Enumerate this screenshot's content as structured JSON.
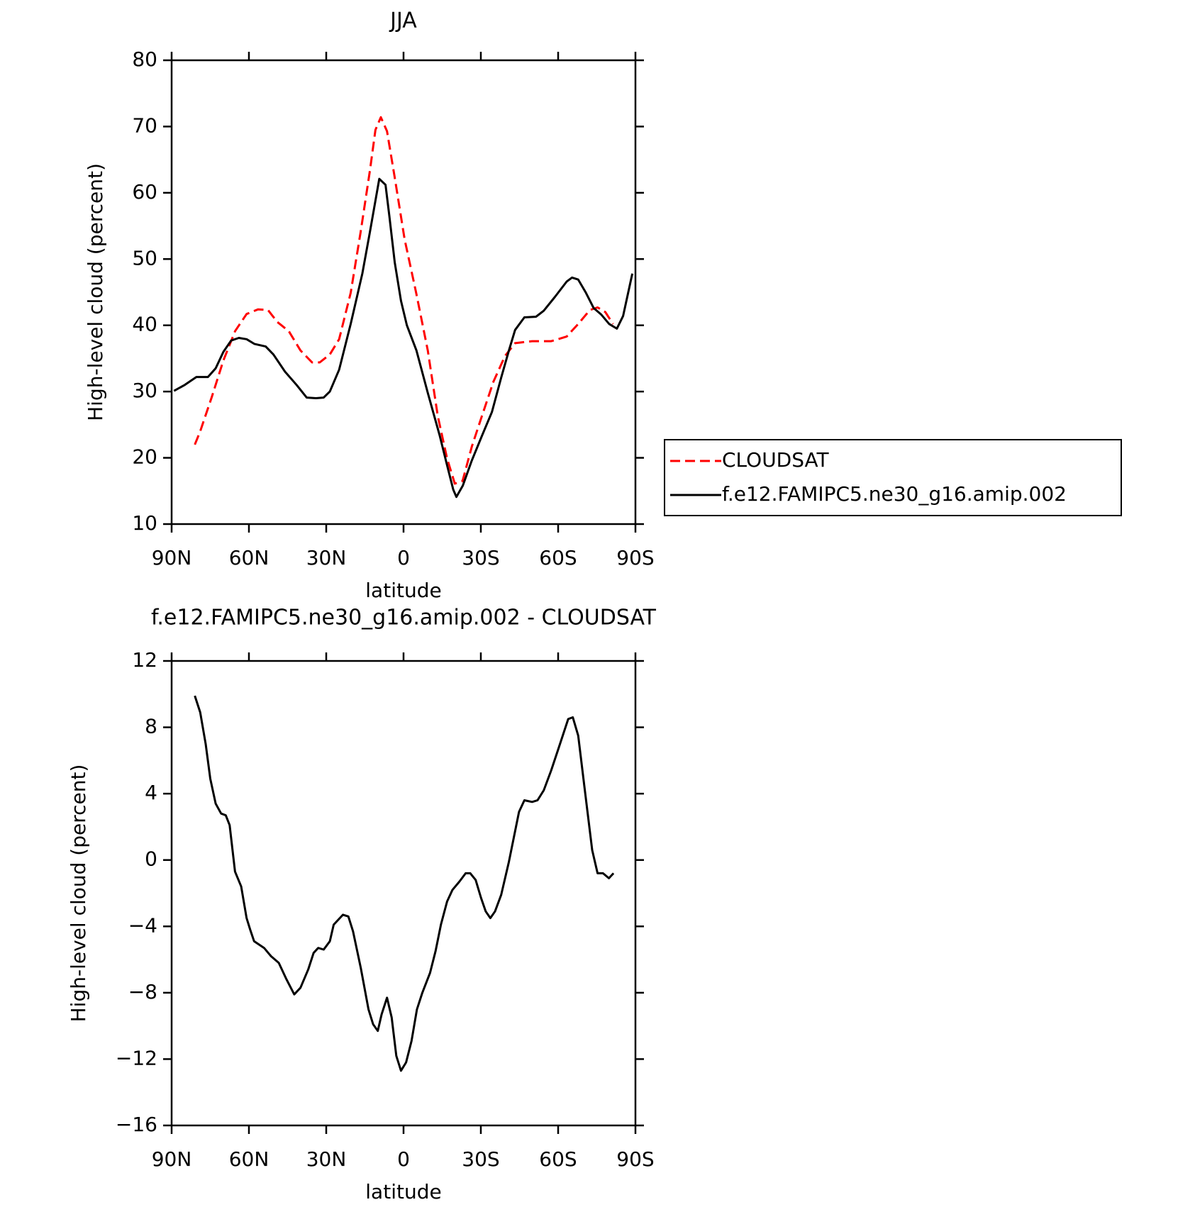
{
  "chart_data": [
    {
      "type": "line",
      "title": "JJA",
      "xlabel": "latitude",
      "ylabel": "High-level cloud (percent)",
      "xlim": [
        90,
        -90
      ],
      "xticks": [
        {
          "value": 90,
          "label": "90N"
        },
        {
          "value": 60,
          "label": "60N"
        },
        {
          "value": 30,
          "label": "30N"
        },
        0,
        {
          "value": -30,
          "label": "30S"
        },
        {
          "value": -60,
          "label": "60S"
        },
        {
          "value": -90,
          "label": "90S"
        }
      ],
      "ylim": [
        10,
        80
      ],
      "yticks": [
        10,
        20,
        30,
        40,
        50,
        60,
        70,
        80
      ],
      "legend": "right",
      "series": [
        {
          "name": "CLOUDSAT",
          "color": "#ff0000",
          "dash": true,
          "x": [
            81,
            78.9,
            74.4,
            69.9,
            65.4,
            60.9,
            56.5,
            52.6,
            49,
            44.5,
            40,
            35.5,
            32.5,
            28.6,
            25,
            20.5,
            16.6,
            13,
            10.9,
            8.8,
            6.4,
            3.4,
            -0.4,
            -4.9,
            -9.4,
            -13.3,
            -16.9,
            -19.9,
            -22.9,
            -26.5,
            -30.4,
            -34.9,
            -39.4,
            -43.3,
            -49.9,
            -57.3,
            -63.3,
            -67.8,
            -72.3,
            -75.3,
            -78.3,
            -81.3
          ],
          "values": [
            22,
            24,
            29.2,
            34.7,
            39.1,
            41.7,
            42.4,
            42.3,
            40.5,
            39.1,
            36.2,
            34.4,
            34.4,
            35.6,
            37.9,
            44.9,
            54.2,
            63.5,
            69.5,
            71.4,
            69.3,
            62.3,
            53,
            44.9,
            36.2,
            26.3,
            19.9,
            16.1,
            16.5,
            21.7,
            26.3,
            31.5,
            35.4,
            37.3,
            37.6,
            37.6,
            38.3,
            40.2,
            42.3,
            42.7,
            42,
            40.2
          ]
        },
        {
          "name": "f.e12.FAMIPC5.ne30_g16.amip.002",
          "color": "#000000",
          "dash": false,
          "x": [
            89.1,
            84.9,
            80.4,
            75.9,
            72.9,
            69.9,
            66.9,
            63.9,
            60.9,
            57.9,
            53.5,
            50.5,
            46,
            41.5,
            37.6,
            34,
            31,
            28.6,
            25,
            20.5,
            16,
            13,
            9.4,
            7,
            5.5,
            3.4,
            1,
            -1.3,
            -5,
            -9.4,
            -14,
            -17,
            -19.3,
            -20.5,
            -23,
            -26.5,
            -30.4,
            -34.3,
            -37.9,
            -40.9,
            -43.3,
            -46.9,
            -51.4,
            -54.4,
            -58.8,
            -63.3,
            -65.4,
            -67.8,
            -70.8,
            -73.8,
            -76.8,
            -79.8,
            -82.8,
            -85.2,
            -88.8
          ],
          "values": [
            30.1,
            31,
            32.2,
            32.2,
            33.5,
            36,
            37.7,
            38.1,
            37.9,
            37.2,
            36.8,
            35.6,
            33,
            31,
            29.1,
            29,
            29.1,
            30,
            33.3,
            40.2,
            47.8,
            54.2,
            62.1,
            61.2,
            56.5,
            49.5,
            43.7,
            40,
            36.2,
            29.8,
            23.4,
            18.7,
            15.2,
            14.1,
            15.8,
            19.6,
            23.3,
            26.9,
            32.1,
            36.2,
            39.3,
            41.2,
            41.3,
            42.2,
            44.3,
            46.6,
            47.2,
            46.9,
            44.9,
            42.6,
            41.6,
            40.2,
            39.5,
            41.4,
            47.8
          ]
        }
      ]
    },
    {
      "type": "line",
      "title": "f.e12.FAMIPC5.ne30_g16.amip.002 - CLOUDSAT",
      "xlabel": "latitude",
      "ylabel": "High-level cloud (percent)",
      "xlim": [
        90,
        -90
      ],
      "xticks": [
        {
          "value": 90,
          "label": "90N"
        },
        {
          "value": 60,
          "label": "60N"
        },
        {
          "value": 30,
          "label": "30N"
        },
        0,
        {
          "value": -30,
          "label": "30S"
        },
        {
          "value": -60,
          "label": "60S"
        },
        {
          "value": -90,
          "label": "90S"
        }
      ],
      "ylim": [
        -16,
        12
      ],
      "yticks": [
        {
          "value": -16,
          "label": "−16"
        },
        {
          "value": -12,
          "label": "−12"
        },
        {
          "value": -8,
          "label": "−8"
        },
        {
          "value": -4,
          "label": "−4"
        },
        0,
        4,
        8,
        12
      ],
      "color": "#000000",
      "x": [
        81,
        78.9,
        76.8,
        75,
        72.9,
        70.8,
        69,
        67.5,
        65.4,
        63,
        60.9,
        59.5,
        58,
        54.1,
        51.4,
        48.4,
        45.4,
        42.4,
        40,
        37,
        34.9,
        33.1,
        31,
        28.6,
        27.1,
        23.5,
        21.4,
        19.6,
        16.6,
        13.6,
        11.8,
        10,
        8.5,
        6.4,
        4.6,
        2.8,
        1,
        -1,
        -3.1,
        -5.2,
        -7.3,
        -10.3,
        -12.4,
        -14.5,
        -16.9,
        -19,
        -21.7,
        -24.1,
        -25.9,
        -28,
        -30.1,
        -31.9,
        -33.7,
        -35.5,
        -37.9,
        -40.9,
        -44.8,
        -46.9,
        -49.9,
        -52,
        -54.4,
        -57.3,
        -60.3,
        -63.9,
        -65.7,
        -67.8,
        -70.2,
        -73.2,
        -75.3,
        -77.4,
        -79.7,
        -81.5
      ],
      "values": [
        9.9,
        8.9,
        7,
        4.9,
        3.4,
        2.8,
        2.7,
        2.1,
        -0.7,
        -1.6,
        -3.5,
        -4.2,
        -4.9,
        -5.3,
        -5.8,
        -6.2,
        -7.2,
        -8.1,
        -7.7,
        -6.6,
        -5.6,
        -5.3,
        -5.4,
        -4.9,
        -3.9,
        -3.3,
        -3.4,
        -4.3,
        -6.5,
        -9,
        -9.9,
        -10.3,
        -9.3,
        -8.3,
        -9.5,
        -11.8,
        -12.7,
        -12.2,
        -10.9,
        -9,
        -8,
        -6.8,
        -5.5,
        -3.9,
        -2.5,
        -1.8,
        -1.3,
        -0.8,
        -0.8,
        -1.2,
        -2.3,
        -3.1,
        -3.5,
        -3.1,
        -2.1,
        -0.1,
        2.9,
        3.6,
        3.5,
        3.6,
        4.2,
        5.4,
        6.8,
        8.5,
        8.6,
        7.5,
        4.4,
        0.6,
        -0.8,
        -0.8,
        -1.1,
        -0.8
      ]
    }
  ]
}
